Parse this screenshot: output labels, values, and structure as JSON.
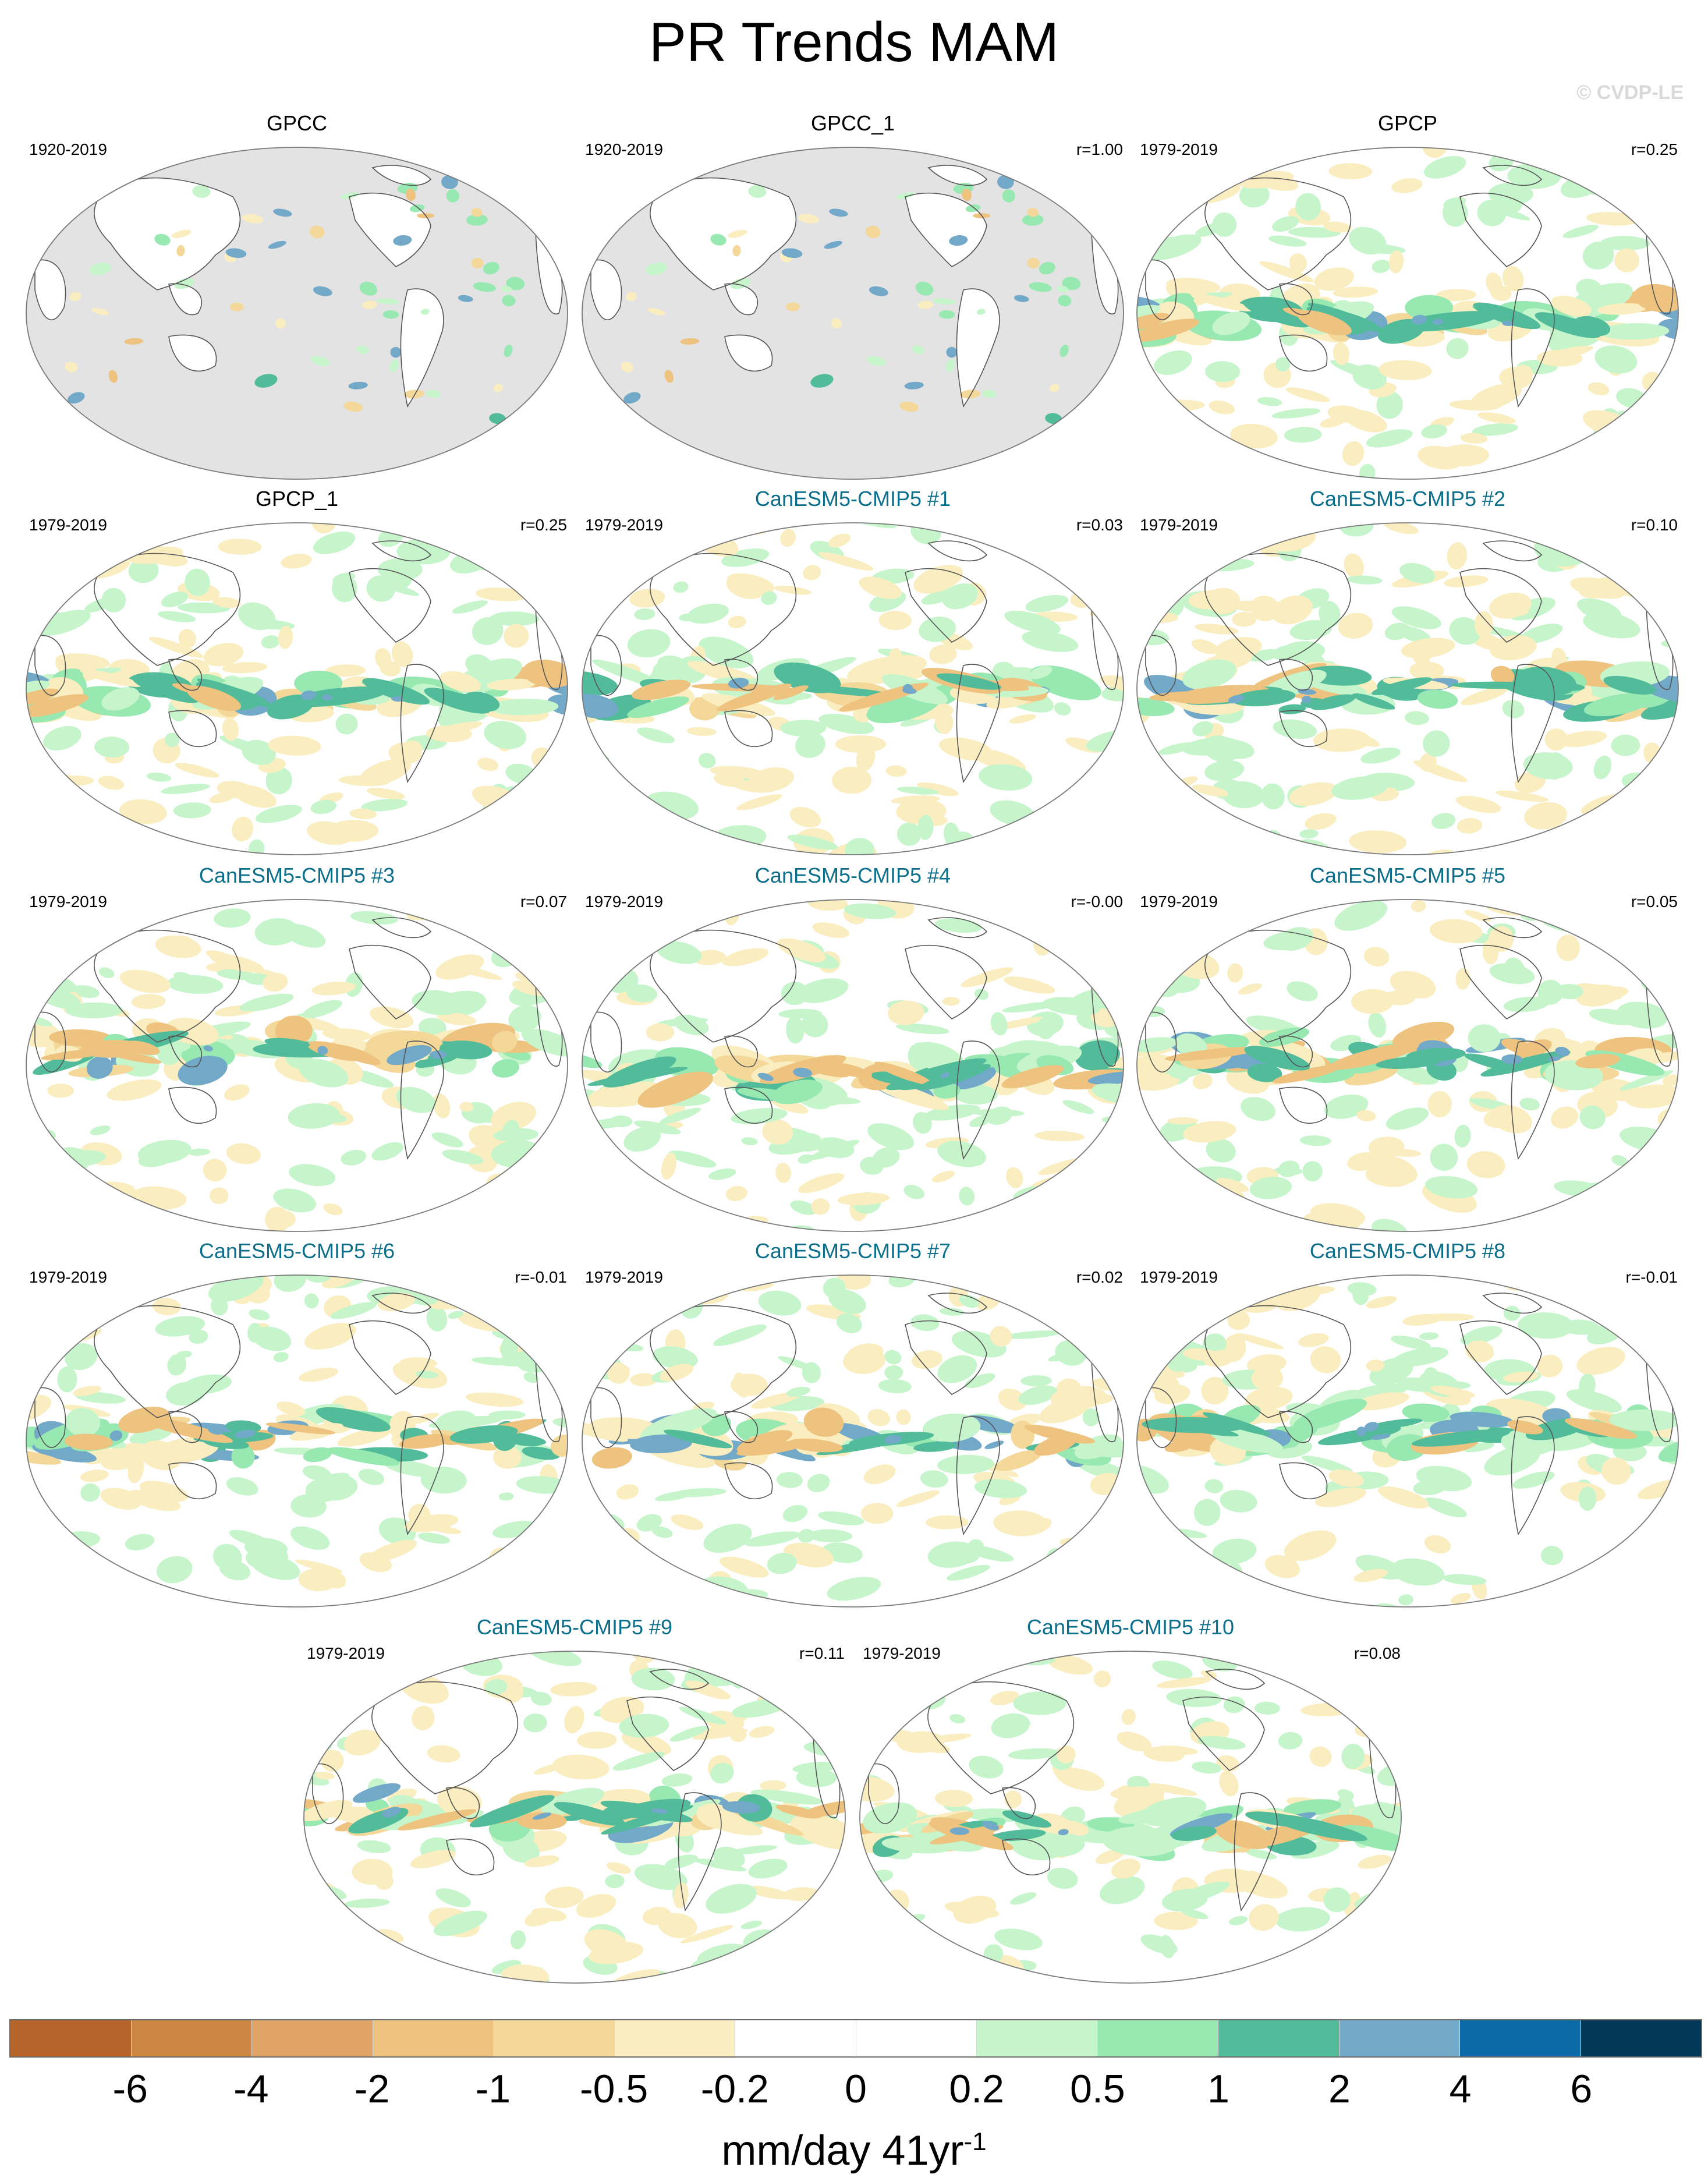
{
  "title": "PR Trends MAM",
  "watermark": "© CVDP-LE",
  "panels": [
    {
      "title": "GPCC",
      "period": "1920-2019",
      "r": "",
      "kind": "obs",
      "masked": true,
      "seed": 11
    },
    {
      "title": "GPCC_1",
      "period": "1920-2019",
      "r": "r=1.00",
      "kind": "obs",
      "masked": true,
      "seed": 11
    },
    {
      "title": "GPCP",
      "period": "1979-2019",
      "r": "r=0.25",
      "kind": "obs",
      "masked": false,
      "seed": 23
    },
    {
      "title": "GPCP_1",
      "period": "1979-2019",
      "r": "r=0.25",
      "kind": "obs",
      "masked": false,
      "seed": 23
    },
    {
      "title": "CanESM5-CMIP5 #1",
      "period": "1979-2019",
      "r": "r=0.03",
      "kind": "model",
      "masked": false,
      "seed": 31
    },
    {
      "title": "CanESM5-CMIP5 #2",
      "period": "1979-2019",
      "r": "r=0.10",
      "kind": "model",
      "masked": false,
      "seed": 37
    },
    {
      "title": "CanESM5-CMIP5 #3",
      "period": "1979-2019",
      "r": "r=0.07",
      "kind": "model",
      "masked": false,
      "seed": 41
    },
    {
      "title": "CanESM5-CMIP5 #4",
      "period": "1979-2019",
      "r": "r=-0.00",
      "kind": "model",
      "masked": false,
      "seed": 43
    },
    {
      "title": "CanESM5-CMIP5 #5",
      "period": "1979-2019",
      "r": "r=0.05",
      "kind": "model",
      "masked": false,
      "seed": 47
    },
    {
      "title": "CanESM5-CMIP5 #6",
      "period": "1979-2019",
      "r": "r=-0.01",
      "kind": "model",
      "masked": false,
      "seed": 53
    },
    {
      "title": "CanESM5-CMIP5 #7",
      "period": "1979-2019",
      "r": "r=0.02",
      "kind": "model",
      "masked": false,
      "seed": 59
    },
    {
      "title": "CanESM5-CMIP5 #8",
      "period": "1979-2019",
      "r": "r=-0.01",
      "kind": "model",
      "masked": false,
      "seed": 61
    },
    {
      "title": "CanESM5-CMIP5 #9",
      "period": "1979-2019",
      "r": "r=0.11",
      "kind": "model",
      "masked": false,
      "seed": 67
    },
    {
      "title": "CanESM5-CMIP5 #10",
      "period": "1979-2019",
      "r": "r=0.08",
      "kind": "model",
      "masked": false,
      "seed": 71
    }
  ],
  "colorbar": {
    "colors": [
      "#b5652a",
      "#cc8644",
      "#dfa466",
      "#eec27f",
      "#f3d89a",
      "#faeec0",
      "#ffffff",
      "#ffffff",
      "#c6f5cc",
      "#98e8b1",
      "#52bc9a",
      "#73a9c8",
      "#0c6aa6",
      "#023858"
    ],
    "ticks": [
      "-6",
      "-4",
      "-2",
      "-1",
      "-0.5",
      "-0.2",
      "0",
      "0.2",
      "0.5",
      "1",
      "2",
      "4",
      "6"
    ],
    "units_base": "mm/day 41yr",
    "units_exp": "-1"
  }
}
